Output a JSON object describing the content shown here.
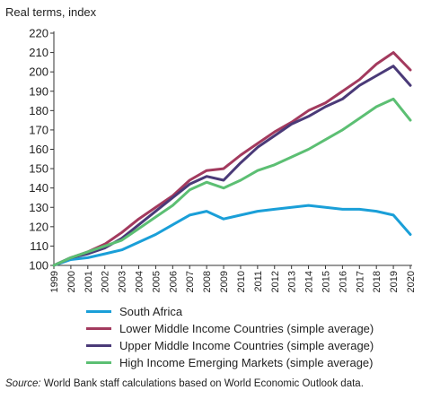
{
  "chart_data": {
    "type": "line",
    "title": "",
    "ylabel": "Real terms, index",
    "xlabel": "",
    "ylim": [
      100,
      220
    ],
    "yticks": [
      100,
      110,
      120,
      130,
      140,
      150,
      160,
      170,
      180,
      190,
      200,
      210,
      220
    ],
    "x": [
      "1999",
      "2000",
      "2001",
      "2002",
      "2003",
      "2004",
      "2005",
      "2006",
      "2007",
      "2008",
      "2009",
      "2010",
      "2011",
      "2012",
      "2013",
      "2014",
      "2015",
      "2016",
      "2017",
      "2018",
      "2019",
      "2020"
    ],
    "grid": false,
    "legend_position": "bottom",
    "series": [
      {
        "name": "South Africa",
        "color": "#1a9fd8",
        "values": [
          100,
          103,
          104,
          106,
          108,
          112,
          116,
          121,
          126,
          128,
          124,
          126,
          128,
          129,
          130,
          131,
          130,
          129,
          129,
          128,
          126,
          116
        ]
      },
      {
        "name": "Lower Middle Income Countries (simple average)",
        "color": "#a33a5e",
        "values": [
          100,
          104,
          107,
          111,
          117,
          124,
          130,
          136,
          144,
          149,
          150,
          157,
          163,
          169,
          174,
          180,
          184,
          190,
          196,
          204,
          210,
          201
        ]
      },
      {
        "name": "Upper Middle Income Countries (simple average)",
        "color": "#4a3a78",
        "values": [
          100,
          104,
          106,
          109,
          114,
          121,
          128,
          135,
          142,
          146,
          144,
          153,
          161,
          167,
          173,
          177,
          182,
          186,
          193,
          198,
          203,
          193
        ]
      },
      {
        "name": "High Income Emerging Markets (simple average)",
        "color": "#5cbf73",
        "values": [
          100,
          104,
          107,
          110,
          113,
          119,
          125,
          131,
          139,
          143,
          140,
          144,
          149,
          152,
          156,
          160,
          165,
          170,
          176,
          182,
          186,
          175
        ]
      }
    ]
  },
  "source": {
    "prefix": "Source:",
    "text": " World Bank staff calculations based on World Economic Outlook data."
  }
}
